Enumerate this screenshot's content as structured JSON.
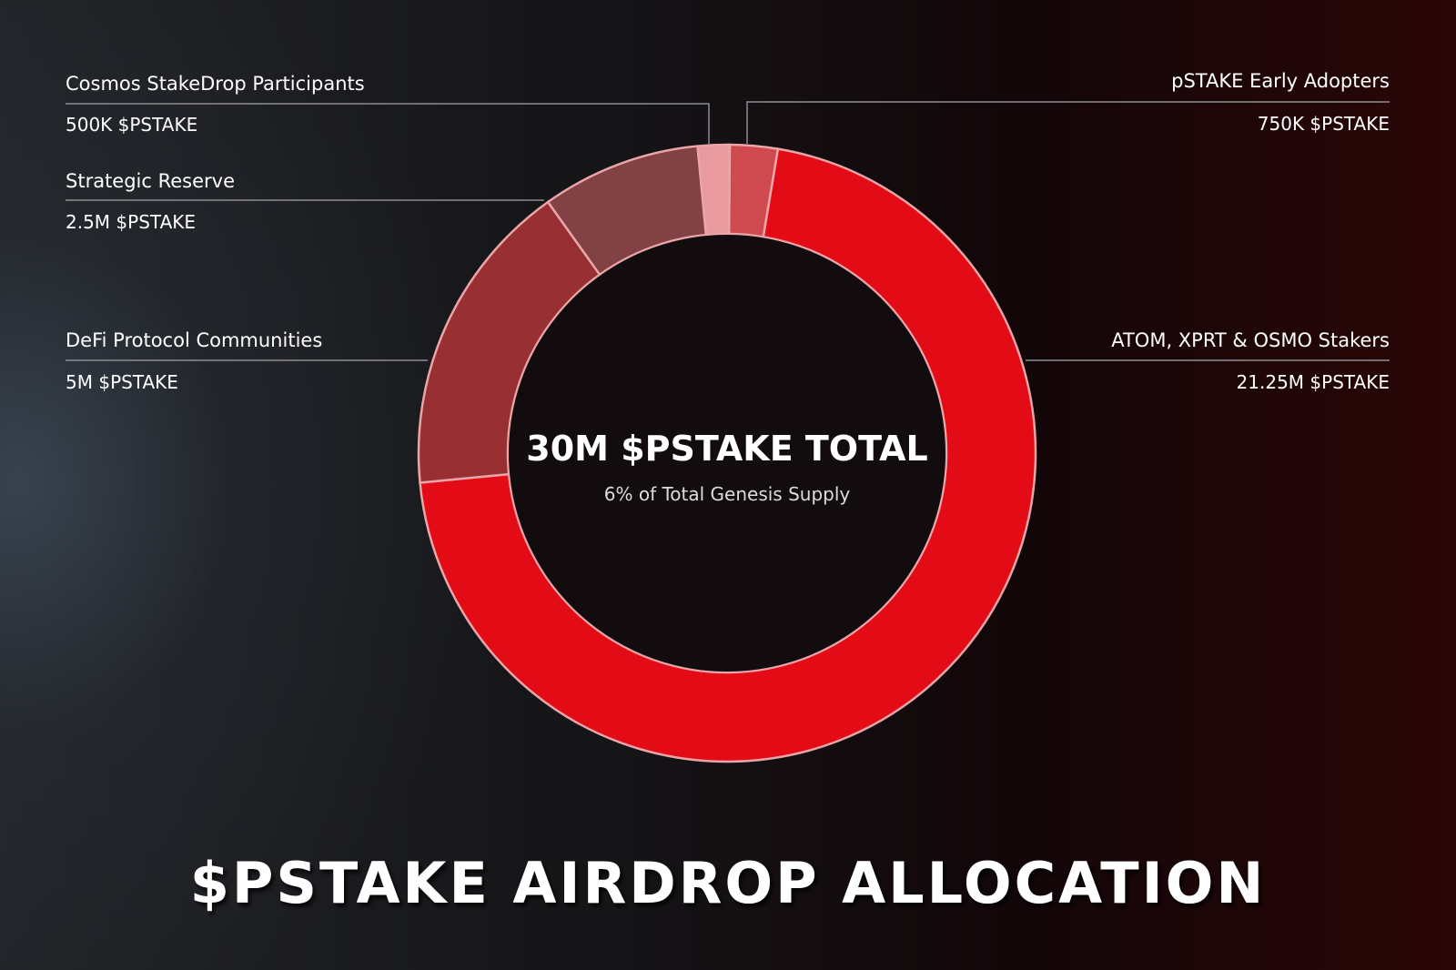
{
  "chart_data": {
    "type": "pie",
    "title": "$PSTAKE AIRDROP ALLOCATION",
    "center": {
      "total": "30M $PSTAKE TOTAL",
      "subtitle": "6% of Total Genesis Supply"
    },
    "slices": [
      {
        "name": "ATOM, XPRT & OSMO Stakers",
        "value": 21.25,
        "value_label": "21.25M $PSTAKE",
        "color": "#e30b15"
      },
      {
        "name": "DeFi Protocol Communities",
        "value": 5,
        "value_label": "5M $PSTAKE",
        "color": "#972f33"
      },
      {
        "name": "Strategic Reserve",
        "value": 2.5,
        "value_label": "2.5M $PSTAKE",
        "color": "#824145"
      },
      {
        "name": "Cosmos StakeDrop Participants",
        "value": 0.5,
        "value_label": "500K $PSTAKE",
        "color": "#e89a9e"
      },
      {
        "name": "pSTAKE Early Adopters",
        "value": 0.75,
        "value_label": "750K $PSTAKE",
        "color": "#cf4a4f"
      }
    ],
    "unit": "M $PSTAKE",
    "legend": "callout labels around chart"
  }
}
